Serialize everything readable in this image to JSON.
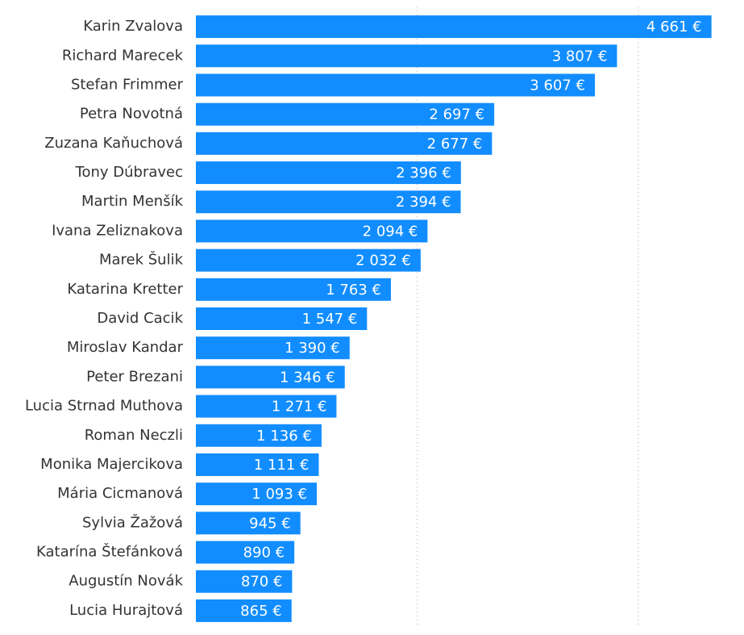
{
  "chart_data": {
    "type": "bar",
    "orientation": "horizontal",
    "color": "#118dff",
    "grid": true,
    "categories": [
      "Karin Zvalova",
      "Richard Marecek",
      "Stefan Frimmer",
      "Petra Novotná",
      "Zuzana Kaňuchová",
      "Tony Dúbravec",
      "Martin Menšík",
      "Ivana Zeliznakova",
      "Marek Šulik",
      "Katarina Kretter",
      "David Cacik",
      "Miroslav Kandar",
      "Peter Brezani",
      "Lucia Strnad Muthova",
      "Roman Neczli",
      "Monika Majercikova",
      "Mária Cicmanová",
      "Sylvia Žažová",
      "Katarína Štefánková",
      "Augustín Novák",
      "Lucia Hurajtová"
    ],
    "values": [
      4661,
      3807,
      3607,
      2697,
      2677,
      2396,
      2394,
      2094,
      2032,
      1763,
      1547,
      1390,
      1346,
      1271,
      1136,
      1111,
      1093,
      945,
      890,
      870,
      865
    ],
    "value_labels": [
      "4 661 €",
      "3 807 €",
      "3 607 €",
      "2 697 €",
      "2 677 €",
      "2 396 €",
      "2 394 €",
      "2 094 €",
      "2 032 €",
      "1 763 €",
      "1 547 €",
      "1 390 €",
      "1 346 €",
      "1 271 €",
      "1 136 €",
      "1 111 €",
      "1 093 €",
      "945 €",
      "890 €",
      "870 €",
      "865 €"
    ],
    "xlim": [
      0,
      4700
    ],
    "xticks": [
      2000,
      4000
    ]
  }
}
